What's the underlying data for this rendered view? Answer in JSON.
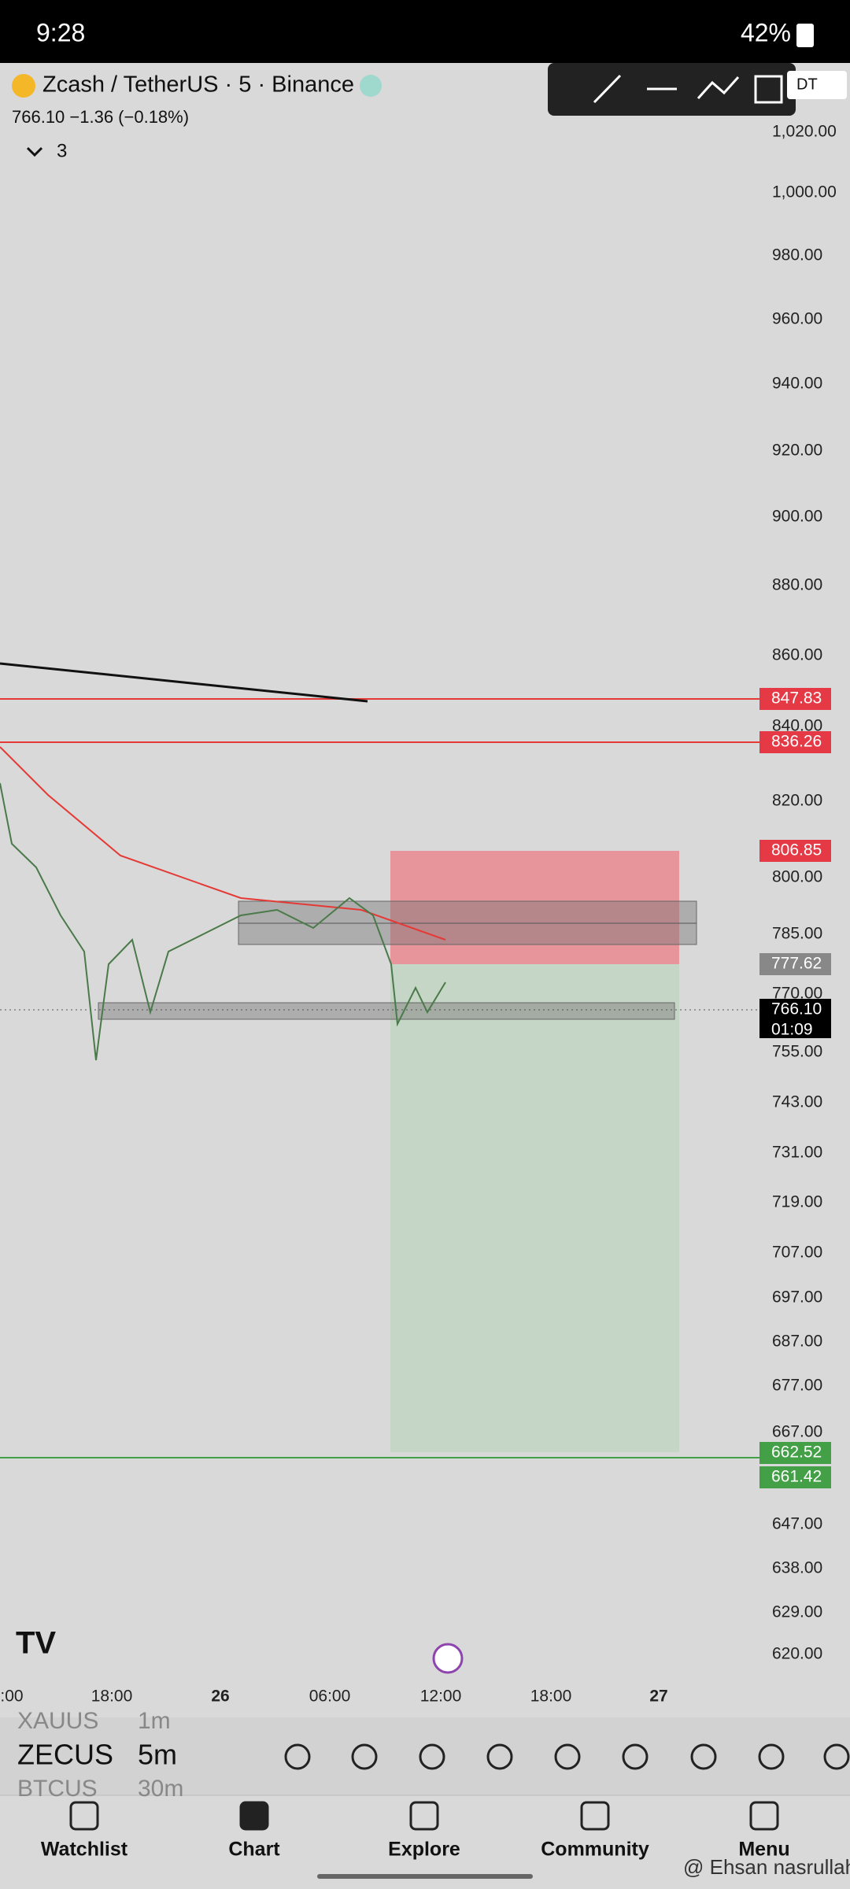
{
  "status_bar": {
    "time": "9:28",
    "battery": "42%"
  },
  "header": {
    "symbol": "Zcash / TetherUS · 5 · Binance",
    "quote": "766.10  −1.36 (−0.18%)",
    "indicators": "3",
    "currency": "DT"
  },
  "price_axis": {
    "labels": [
      "1,020.00",
      "1,000.00",
      "980.00",
      "960.00",
      "940.00",
      "920.00",
      "900.00",
      "880.00",
      "860.00",
      "840.00",
      "820.00",
      "800.00",
      "785.00",
      "770.00",
      "755.00",
      "743.00",
      "731.00",
      "719.00",
      "707.00",
      "697.00",
      "687.00",
      "677.00",
      "667.00",
      "647.00",
      "638.00",
      "629.00",
      "620.00"
    ]
  },
  "price_tags": [
    "847.83",
    "836.26",
    "806.85",
    "777.62",
    "766.10",
    "662.52",
    "661.42"
  ],
  "countdown": "01:09",
  "time_axis": [
    ":00",
    "18:00",
    "26",
    "06:00",
    "12:00",
    "18:00",
    "27"
  ],
  "watchlist": {
    "symbols": [
      "XAUUS",
      "ZECUS",
      "BTCUS"
    ],
    "intervals": [
      "1m",
      "5m",
      "30m"
    ]
  },
  "nav": [
    "Watchlist",
    "Chart",
    "Explore",
    "Community",
    "Menu"
  ],
  "watermark": "@ Ehsan nasrullah"
}
